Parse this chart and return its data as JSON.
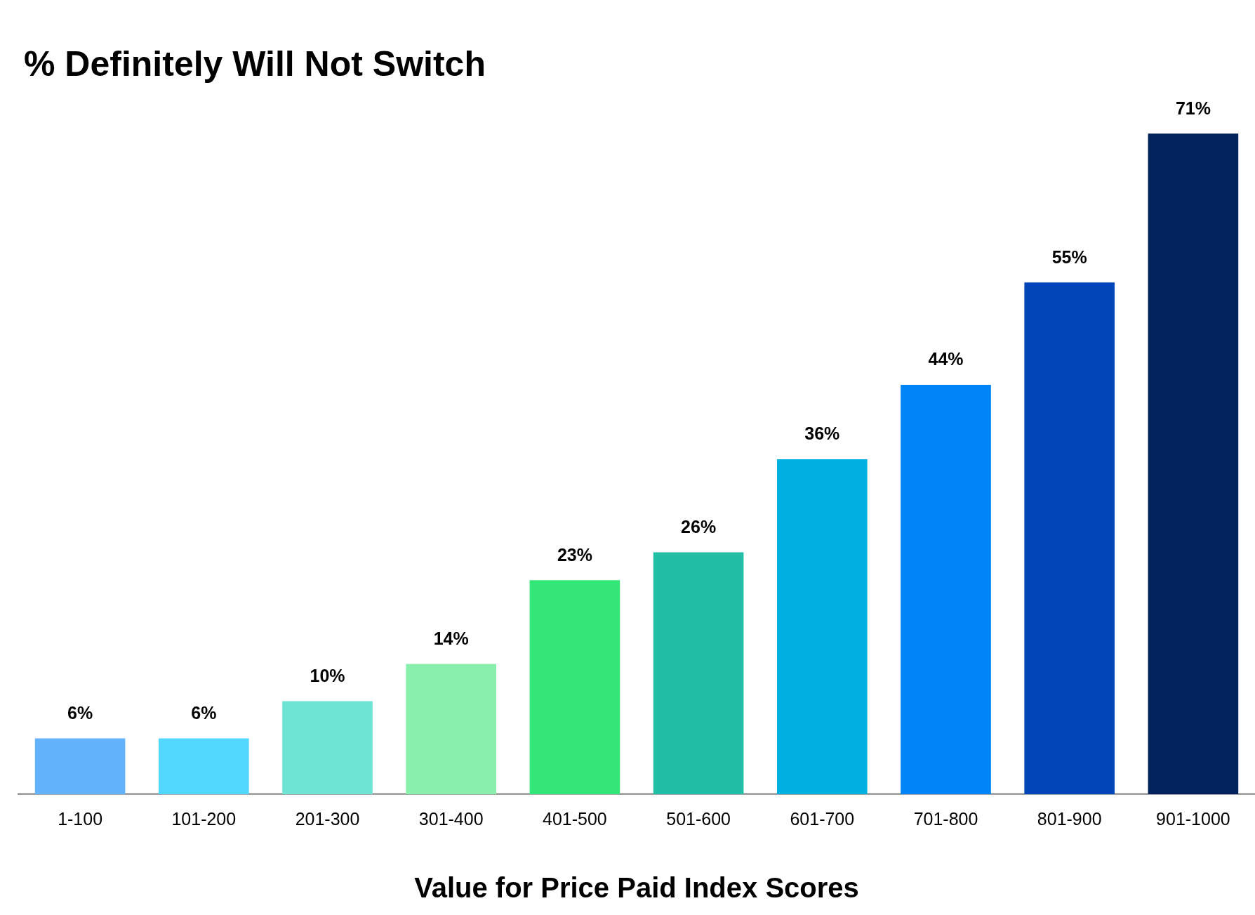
{
  "chart_data": {
    "type": "bar",
    "title": "% Definitely Will Not Switch",
    "xlabel": "Value for Price Paid Index Scores",
    "categories": [
      "1-100",
      "101-200",
      "201-300",
      "301-400",
      "401-500",
      "501-600",
      "601-700",
      "701-800",
      "801-900",
      "901-1000"
    ],
    "values": [
      6,
      6,
      10,
      14,
      23,
      26,
      36,
      44,
      55,
      71
    ],
    "value_labels": [
      "6%",
      "6%",
      "10%",
      "14%",
      "23%",
      "26%",
      "36%",
      "44%",
      "55%",
      "71%"
    ],
    "colors": [
      "#63b3fc",
      "#52d8fe",
      "#6de4d4",
      "#88f0ac",
      "#34e677",
      "#22bfa6",
      "#00b0e0",
      "#0084f8",
      "#0046b8",
      "#01225a"
    ],
    "legend": false,
    "grid": false
  }
}
